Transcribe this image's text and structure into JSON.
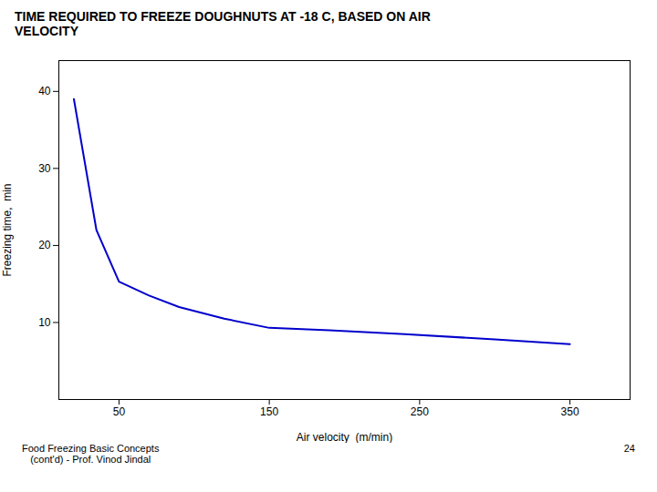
{
  "chart_data": {
    "type": "line",
    "title": "TIME REQUIRED TO FREEZE DOUGHNUTS AT -18 C, BASED ON AIR\nVELOCITY",
    "xlabel": "Air velocity  (m/min)",
    "ylabel": "Freezing time,  min",
    "x": [
      20,
      35,
      50,
      70,
      90,
      120,
      150,
      190,
      240,
      300,
      350
    ],
    "values": [
      39.0,
      22.0,
      15.3,
      13.5,
      12.0,
      10.5,
      9.3,
      9.0,
      8.5,
      7.8,
      7.2
    ],
    "color": "#0000cc",
    "xlim": [
      10,
      390
    ],
    "ylim": [
      0,
      44
    ],
    "xticks": [
      50,
      150,
      250,
      350
    ],
    "yticks": [
      10,
      20,
      30,
      40
    ],
    "grid": false,
    "annotations": [
      "Food Freezing Basic Concepts\n   (cont'd) - Prof. Vinod Jindal",
      "24"
    ]
  }
}
